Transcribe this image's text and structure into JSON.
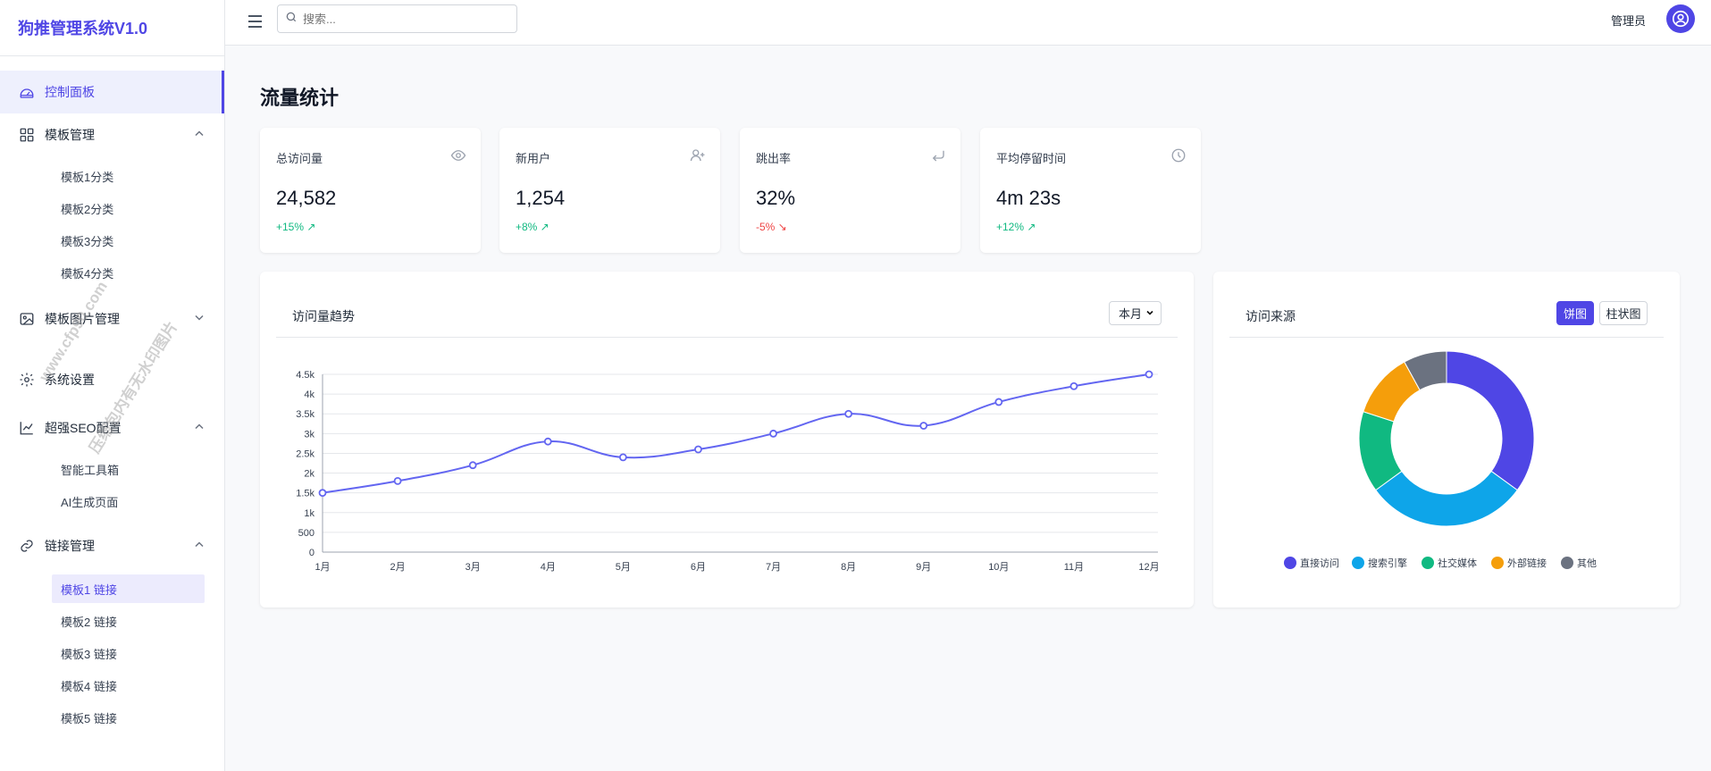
{
  "brand": {
    "title": "狗推管理系统V1.0"
  },
  "sidebar": {
    "dashboard": {
      "label": "控制面板"
    },
    "templates": {
      "label": "模板管理",
      "items": [
        "模板1分类",
        "模板2分类",
        "模板3分类",
        "模板4分类"
      ]
    },
    "template_images": {
      "label": "模板图片管理"
    },
    "settings": {
      "label": "系统设置"
    },
    "seo": {
      "label": "超强SEO配置",
      "items": [
        "智能工具箱",
        "AI生成页面"
      ]
    },
    "links": {
      "label": "链接管理",
      "items": [
        "模板1 链接",
        "模板2 链接",
        "模板3 链接",
        "模板4 链接",
        "模板5 链接"
      ],
      "active_index": 0
    }
  },
  "watermark": {
    "line1": "www.cfp90.com",
    "line2": "压缩包内有无水印图片"
  },
  "header": {
    "search_placeholder": "搜索...",
    "user": "管理员"
  },
  "page": {
    "title": "流量统计"
  },
  "stats": [
    {
      "label": "总访问量",
      "value": "24,582",
      "change": "+15% ↗",
      "trend": "up",
      "icon": "eye-icon"
    },
    {
      "label": "新用户",
      "value": "1,254",
      "change": "+8% ↗",
      "trend": "up",
      "icon": "user-plus-icon"
    },
    {
      "label": "跳出率",
      "value": "32%",
      "change": "-5% ↘",
      "trend": "down",
      "icon": "return-arrow-icon"
    },
    {
      "label": "平均停留时间",
      "value": "4m 23s",
      "change": "+12% ↗",
      "trend": "up",
      "icon": "clock-icon"
    }
  ],
  "trend_card": {
    "title": "访问量趋势",
    "period": "本月"
  },
  "source_card": {
    "title": "访问来源",
    "btn_pie": "饼图",
    "btn_bar": "柱状图"
  },
  "colors": {
    "accent": "#4f46e5",
    "up": "#10b981",
    "down": "#ef4444"
  },
  "chart_data": [
    {
      "type": "line",
      "categories": [
        "1月",
        "2月",
        "3月",
        "4月",
        "5月",
        "6月",
        "7月",
        "8月",
        "9月",
        "10月",
        "11月",
        "12月"
      ],
      "values": [
        1500,
        1800,
        2200,
        2800,
        2400,
        2600,
        3000,
        3500,
        3200,
        3800,
        4200,
        4500
      ],
      "ylim": [
        0,
        4500
      ],
      "yticks": [
        "0",
        "500",
        "1k",
        "1.5k",
        "2k",
        "2.5k",
        "3k",
        "3.5k",
        "4k",
        "4.5k"
      ],
      "grid": true,
      "color": "#6366f1"
    },
    {
      "type": "pie",
      "donut": true,
      "labels": [
        "直接访问",
        "搜索引擎",
        "社交媒体",
        "外部链接",
        "其他"
      ],
      "values": [
        35,
        30,
        15,
        12,
        8
      ],
      "colors": [
        "#4f46e5",
        "#0ea5e9",
        "#10b981",
        "#f59e0b",
        "#6b7280"
      ],
      "legend": "bottom"
    }
  ]
}
